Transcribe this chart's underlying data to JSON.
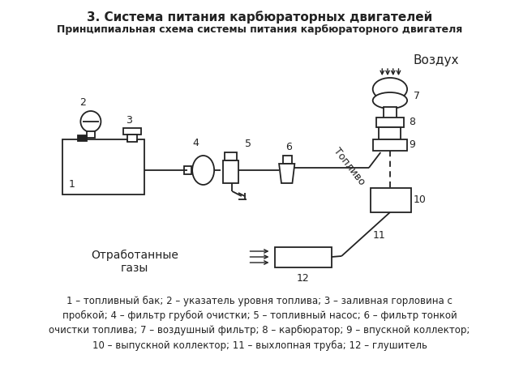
{
  "title": "3. Система питания карбюраторных двигателей",
  "subtitle": "Принципиальная схема системы питания карбюраторного двигателя",
  "caption": "1 – топливный бак; 2 – указатель уровня топлива; 3 – заливная горловина с\nпробкой; 4 – фильтр грубой очистки; 5 – топливный насос; 6 – фильтр тонкой\nочистки топлива; 7 – воздушный фильтр; 8 – карбюратор; 9 – впускной коллектор;\n10 – выпускной коллектор; 11 – выхлопная труба; 12 – глушитель",
  "bg_color": "#ffffff",
  "lc": "#222222"
}
